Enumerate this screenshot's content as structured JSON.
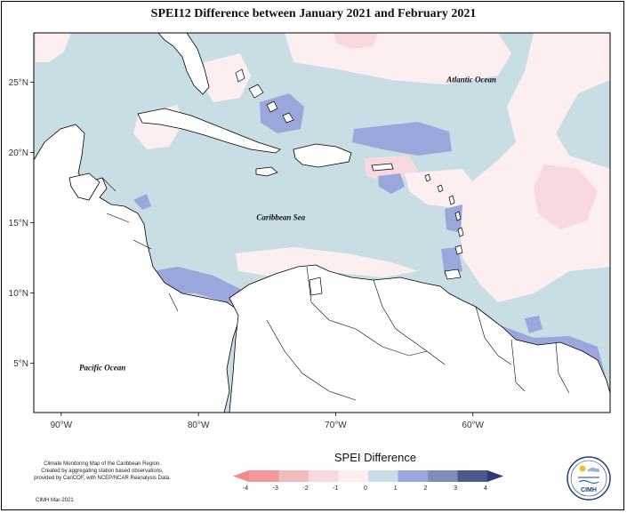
{
  "title": "SPEI12 Difference between January 2021 and February 2021",
  "map": {
    "lon_range": [
      -92,
      -50
    ],
    "lat_range": [
      1.5,
      28.5
    ],
    "lon_ticks": [
      {
        "value": -90,
        "label": "90°W"
      },
      {
        "value": -80,
        "label": "80°W"
      },
      {
        "value": -70,
        "label": "70°W"
      },
      {
        "value": -60,
        "label": "60°W"
      }
    ],
    "lat_ticks": [
      {
        "value": 25,
        "label": "25°N"
      },
      {
        "value": 20,
        "label": "20°N"
      },
      {
        "value": 15,
        "label": "15°N"
      },
      {
        "value": 10,
        "label": "10°N"
      },
      {
        "value": 5,
        "label": "5°N"
      }
    ],
    "labels": [
      {
        "text": "Atlantic Ocean",
        "lon": -60.1,
        "lat": 25.0
      },
      {
        "text": "Caribbean Sea",
        "lon": -74.0,
        "lat": 15.2
      },
      {
        "text": "Pacific Ocean",
        "lon": -87.0,
        "lat": 4.5
      }
    ],
    "background_class_color": "#c9dee4",
    "ocean_color": "#c9dee4",
    "land_color": "#ffffff"
  },
  "legend": {
    "title": "SPEI Difference",
    "ticks": [
      "-4",
      "-3",
      "-2",
      "-1",
      "0",
      "1",
      "2",
      "3",
      "4"
    ],
    "colors": [
      "#f4989c",
      "#f2bcbf",
      "#f8dade",
      "#fdeff0",
      "#c9dee4",
      "#9aa6dc",
      "#7d8fb6",
      "#4a5a8c"
    ],
    "low_arrow_color": "#f4888d",
    "high_arrow_color": "#2d3b75"
  },
  "credit": {
    "line1": "Climate Monitoring Map of the Caribbean Region.",
    "line2": "Created by aggregating station based observations,",
    "line3": "provided by CariCOF, with NCEP/NCAR Reanalysis Data.",
    "date": "CIMH Mar-2021"
  },
  "logo": {
    "text": "CIMH",
    "icon": "cimh-logo-icon"
  }
}
